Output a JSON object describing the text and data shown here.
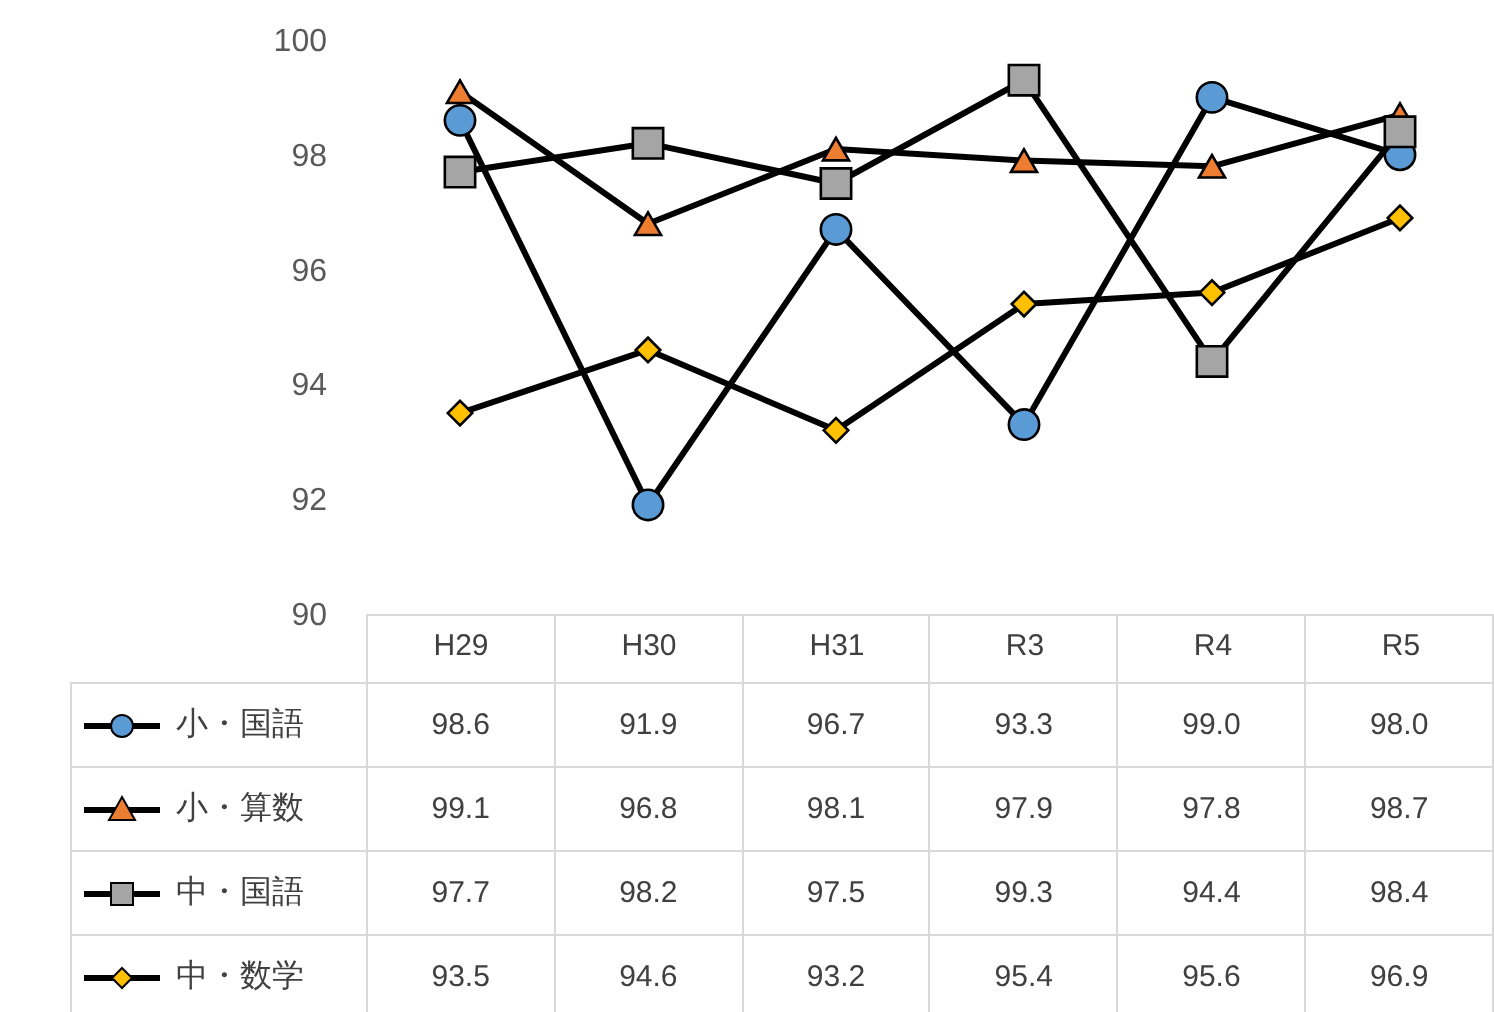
{
  "chart_data": {
    "type": "line",
    "categories": [
      "H29",
      "H30",
      "H31",
      "R3",
      "R4",
      "R5"
    ],
    "series": [
      {
        "name": "小・国語",
        "color": "#5b9bd5",
        "marker": "circle",
        "values": [
          98.6,
          91.9,
          96.7,
          93.3,
          99.0,
          98.0
        ],
        "value_labels": [
          "98.6",
          "91.9",
          "96.7",
          "93.3",
          "99.0",
          "98.0"
        ]
      },
      {
        "name": "小・算数",
        "color": "#ed7d31",
        "marker": "triangle",
        "values": [
          99.1,
          96.8,
          98.1,
          97.9,
          97.8,
          98.7
        ],
        "value_labels": [
          "99.1",
          "96.8",
          "98.1",
          "97.9",
          "97.8",
          "98.7"
        ]
      },
      {
        "name": "中・国語",
        "color": "#a5a5a5",
        "marker": "square",
        "values": [
          97.7,
          98.2,
          97.5,
          99.3,
          94.4,
          98.4
        ],
        "value_labels": [
          "97.7",
          "98.2",
          "97.5",
          "99.3",
          "94.4",
          "98.4"
        ]
      },
      {
        "name": "中・数学",
        "color": "#ffc000",
        "marker": "diamond",
        "values": [
          93.5,
          94.6,
          93.2,
          95.4,
          95.6,
          96.9
        ],
        "value_labels": [
          "93.5",
          "94.6",
          "93.2",
          "95.4",
          "95.6",
          "96.9"
        ]
      }
    ],
    "ylim": [
      90,
      100
    ],
    "yticks": [
      90,
      92,
      94,
      96,
      98,
      100
    ],
    "grid": false,
    "legend": "bottom left"
  }
}
